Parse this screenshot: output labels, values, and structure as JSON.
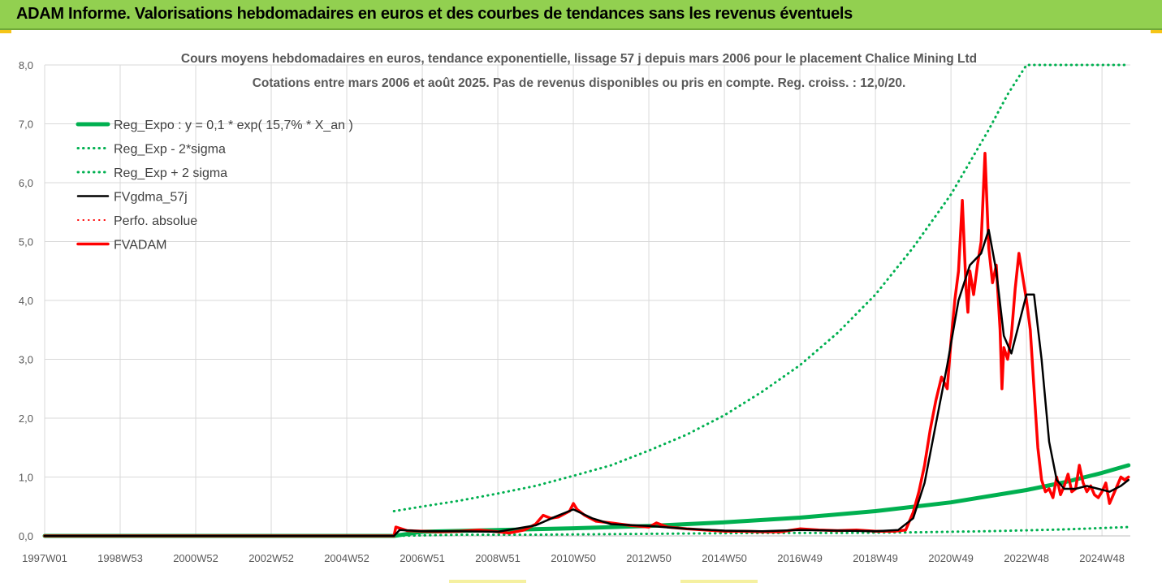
{
  "header": {
    "title": "ADAM Informe. Valorisations hebdomadaires en euros et des courbes de tendances sans les revenus éventuels"
  },
  "colors": {
    "header_bg": "#92d050",
    "green": "#00b050",
    "black": "#000000",
    "red": "#ff0000"
  },
  "chart_data": {
    "type": "line",
    "title": "Cours moyens hebdomadaires en euros, tendance exponentielle, lissage 57 j depuis mars 2006 pour le placement Chalice Mining Ltd",
    "subtitle": "Cotations entre mars 2006 et août 2025. Pas de revenus disponibles ou pris en compte. Reg. croiss. : 12,0/20.",
    "ylim": [
      0,
      8
    ],
    "xlim": [
      1997.0,
      2025.75
    ],
    "y_ticks": [
      "0,0",
      "1,0",
      "2,0",
      "3,0",
      "4,0",
      "5,0",
      "6,0",
      "7,0",
      "8,0"
    ],
    "x_ticks": [
      {
        "label": "1997W01",
        "x": 1997.0
      },
      {
        "label": "1998W53",
        "x": 1999.0
      },
      {
        "label": "2000W52",
        "x": 2001.0
      },
      {
        "label": "2002W52",
        "x": 2003.0
      },
      {
        "label": "2004W52",
        "x": 2005.0
      },
      {
        "label": "2006W51",
        "x": 2007.0
      },
      {
        "label": "2008W51",
        "x": 2009.0
      },
      {
        "label": "2010W50",
        "x": 2011.0
      },
      {
        "label": "2012W50",
        "x": 2013.0
      },
      {
        "label": "2014W50",
        "x": 2015.0
      },
      {
        "label": "2016W49",
        "x": 2017.0
      },
      {
        "label": "2018W49",
        "x": 2019.0
      },
      {
        "label": "2020W49",
        "x": 2021.0
      },
      {
        "label": "2022W48",
        "x": 2023.0
      },
      {
        "label": "2024W48",
        "x": 2025.0
      }
    ],
    "grid": true,
    "legend_position": "top-left",
    "legend": [
      {
        "label": "Reg_Expo : y = 0,1 * exp( 15,7% *  X_an )",
        "color": "#00b050",
        "style": "solid",
        "width": 5
      },
      {
        "label": "Reg_Exp - 2*sigma",
        "color": "#00b050",
        "style": "dotted",
        "width": 3
      },
      {
        "label": "Reg_Exp + 2 sigma",
        "color": "#00b050",
        "style": "dotted",
        "width": 3
      },
      {
        "label": "FVgdma_57j",
        "color": "#000000",
        "style": "solid",
        "width": 2.5
      },
      {
        "label": "Perfo. absolue",
        "color": "#ff0000",
        "style": "dotted",
        "width": 2
      },
      {
        "label": "FVADAM",
        "color": "#ff0000",
        "style": "solid",
        "width": 3.5
      }
    ],
    "series": [
      {
        "name": "FVADAM",
        "x": [
          1997.0,
          2006.25,
          2006.3,
          2006.6,
          2007.0,
          2007.5,
          2008.0,
          2008.5,
          2009.0,
          2009.3,
          2009.7,
          2010.0,
          2010.2,
          2010.4,
          2010.6,
          2010.9,
          2011.0,
          2011.1,
          2011.3,
          2011.6,
          2012.0,
          2012.5,
          2013.0,
          2013.2,
          2013.5,
          2014.0,
          2014.5,
          2015.0,
          2015.5,
          2016.0,
          2016.5,
          2017.0,
          2017.5,
          2018.0,
          2018.5,
          2019.0,
          2019.5,
          2019.8,
          2020.0,
          2020.15,
          2020.3,
          2020.45,
          2020.6,
          2020.75,
          2020.9,
          2021.0,
          2021.1,
          2021.2,
          2021.3,
          2021.4,
          2021.45,
          2021.5,
          2021.6,
          2021.7,
          2021.8,
          2021.9,
          2022.0,
          2022.1,
          2022.2,
          2022.3,
          2022.35,
          2022.4,
          2022.5,
          2022.6,
          2022.7,
          2022.8,
          2022.9,
          2023.0,
          2023.1,
          2023.2,
          2023.3,
          2023.4,
          2023.5,
          2023.6,
          2023.7,
          2023.8,
          2023.9,
          2024.0,
          2024.1,
          2024.2,
          2024.3,
          2024.4,
          2024.5,
          2024.6,
          2024.7,
          2024.8,
          2024.9,
          2025.0,
          2025.1,
          2025.2,
          2025.3,
          2025.4,
          2025.5,
          2025.6,
          2025.7
        ],
        "values": [
          0.0,
          0.0,
          0.15,
          0.09,
          0.08,
          0.07,
          0.08,
          0.1,
          0.07,
          0.05,
          0.1,
          0.2,
          0.35,
          0.3,
          0.32,
          0.42,
          0.55,
          0.45,
          0.35,
          0.25,
          0.22,
          0.18,
          0.15,
          0.22,
          0.15,
          0.12,
          0.1,
          0.08,
          0.08,
          0.07,
          0.07,
          0.12,
          0.1,
          0.09,
          0.1,
          0.08,
          0.08,
          0.1,
          0.4,
          0.75,
          1.2,
          1.8,
          2.3,
          2.7,
          2.5,
          3.3,
          4.0,
          4.5,
          5.7,
          4.2,
          3.8,
          4.5,
          4.1,
          4.6,
          5.0,
          6.5,
          4.9,
          4.3,
          4.6,
          3.5,
          2.5,
          3.2,
          3.0,
          3.4,
          4.2,
          4.8,
          4.4,
          4.0,
          3.5,
          2.5,
          1.5,
          0.95,
          0.75,
          0.8,
          0.65,
          1.0,
          0.7,
          0.85,
          1.05,
          0.75,
          0.8,
          1.2,
          0.9,
          0.75,
          0.85,
          0.7,
          0.65,
          0.75,
          0.9,
          0.55,
          0.7,
          0.85,
          1.0,
          0.95,
          1.0
        ]
      },
      {
        "name": "FVgdma_57j",
        "x": [
          1997.0,
          2006.25,
          2006.4,
          2007.0,
          2008.0,
          2009.0,
          2010.0,
          2010.5,
          2011.0,
          2011.5,
          2012.0,
          2013.0,
          2014.0,
          2015.0,
          2016.0,
          2017.0,
          2018.0,
          2019.0,
          2019.6,
          2020.0,
          2020.3,
          2020.6,
          2020.9,
          2021.2,
          2021.5,
          2021.8,
          2022.0,
          2022.2,
          2022.4,
          2022.6,
          2022.8,
          2023.0,
          2023.2,
          2023.4,
          2023.6,
          2023.8,
          2024.0,
          2024.3,
          2024.6,
          2024.9,
          2025.2,
          2025.5,
          2025.7
        ],
        "values": [
          0.0,
          0.0,
          0.1,
          0.08,
          0.08,
          0.07,
          0.18,
          0.32,
          0.45,
          0.3,
          0.2,
          0.17,
          0.12,
          0.09,
          0.08,
          0.1,
          0.09,
          0.08,
          0.1,
          0.3,
          0.9,
          1.9,
          2.9,
          4.0,
          4.6,
          4.8,
          5.2,
          4.5,
          3.4,
          3.1,
          3.6,
          4.1,
          4.1,
          3.0,
          1.6,
          0.95,
          0.8,
          0.8,
          0.85,
          0.8,
          0.75,
          0.85,
          0.95
        ]
      },
      {
        "name": "Reg_Expo : y = 0,1 * exp( 15,7% *  X_an )",
        "x": [
          1997.0,
          2006.25,
          2007.0,
          2009.0,
          2011.0,
          2013.0,
          2015.0,
          2017.0,
          2019.0,
          2021.0,
          2023.0,
          2024.0,
          2025.0,
          2025.7
        ],
        "values": [
          0.0,
          0.0,
          0.07,
          0.1,
          0.13,
          0.17,
          0.23,
          0.31,
          0.42,
          0.57,
          0.78,
          0.91,
          1.07,
          1.2
        ]
      },
      {
        "name": "Reg_Exp - 2*sigma",
        "x": [
          1997.0,
          2006.25,
          2008.0,
          2010.0,
          2012.0,
          2014.0,
          2016.0,
          2018.0,
          2020.0,
          2022.0,
          2024.0,
          2025.7
        ],
        "values": [
          0.0,
          0.0,
          0.02,
          0.02,
          0.03,
          0.04,
          0.05,
          0.05,
          0.06,
          0.08,
          0.11,
          0.15
        ]
      },
      {
        "name": "Reg_Exp + 2 sigma",
        "x": [
          2006.25,
          2007.0,
          2008.0,
          2009.0,
          2010.0,
          2011.0,
          2012.0,
          2013.0,
          2014.0,
          2015.0,
          2016.0,
          2017.0,
          2018.0,
          2019.0,
          2020.0,
          2021.0,
          2021.5,
          2022.0,
          2022.5,
          2023.0,
          2023.5,
          2024.0,
          2024.4,
          2025.7
        ],
        "values": [
          0.42,
          0.5,
          0.6,
          0.72,
          0.85,
          1.02,
          1.2,
          1.45,
          1.72,
          2.05,
          2.45,
          2.9,
          3.45,
          4.1,
          4.9,
          5.8,
          6.35,
          6.9,
          7.5,
          8.0,
          8.0,
          8.0,
          8.0,
          8.0
        ]
      }
    ]
  }
}
